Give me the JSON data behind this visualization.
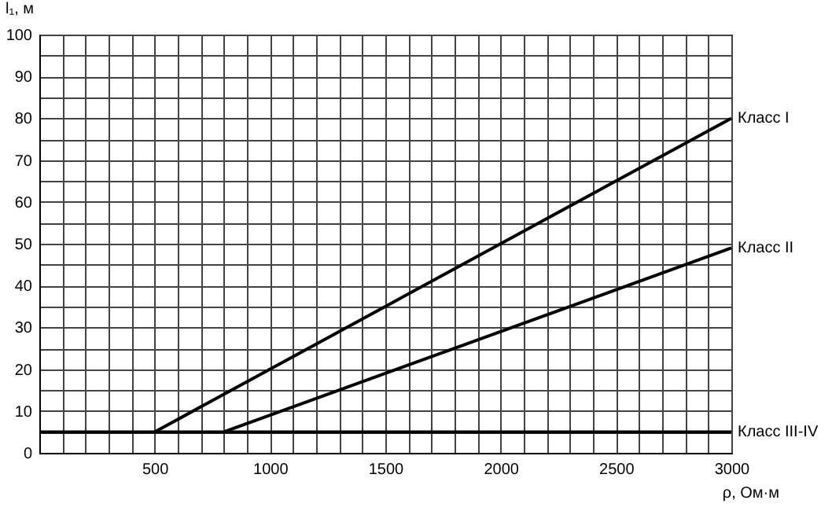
{
  "chart_data": {
    "type": "line",
    "xlabel": "ρ, Ом·м",
    "ylabel": "l₁, м",
    "xlim": [
      0,
      3000
    ],
    "ylim": [
      0,
      100
    ],
    "xticks": [
      {
        "value": 0,
        "label": null
      },
      {
        "value": 100,
        "label": null
      },
      {
        "value": 200,
        "label": null
      },
      {
        "value": 300,
        "label": null
      },
      {
        "value": 400,
        "label": null
      },
      500,
      {
        "value": 600,
        "label": null
      },
      {
        "value": 700,
        "label": null
      },
      {
        "value": 800,
        "label": null
      },
      {
        "value": 900,
        "label": null
      },
      1000,
      {
        "value": 1100,
        "label": null
      },
      {
        "value": 1200,
        "label": null
      },
      {
        "value": 1300,
        "label": null
      },
      {
        "value": 1400,
        "label": null
      },
      1500,
      {
        "value": 1600,
        "label": null
      },
      {
        "value": 1700,
        "label": null
      },
      {
        "value": 1800,
        "label": null
      },
      {
        "value": 1900,
        "label": null
      },
      2000,
      {
        "value": 2100,
        "label": null
      },
      {
        "value": 2200,
        "label": null
      },
      {
        "value": 2300,
        "label": null
      },
      {
        "value": 2400,
        "label": null
      },
      2500,
      {
        "value": 2600,
        "label": null
      },
      {
        "value": 2700,
        "label": null
      },
      {
        "value": 2800,
        "label": null
      },
      {
        "value": 2900,
        "label": null
      },
      3000
    ],
    "yticks": [
      0,
      {
        "value": 5,
        "label": null
      },
      10,
      {
        "value": 15,
        "label": null
      },
      20,
      {
        "value": 25,
        "label": null
      },
      30,
      {
        "value": 35,
        "label": null
      },
      40,
      {
        "value": 45,
        "label": null
      },
      50,
      {
        "value": 55,
        "label": null
      },
      60,
      {
        "value": 65,
        "label": null
      },
      70,
      {
        "value": 75,
        "label": null
      },
      80,
      {
        "value": 85,
        "label": null
      },
      90,
      {
        "value": 95,
        "label": null
      },
      100
    ],
    "grid": true,
    "legend": false,
    "line_style": "solid",
    "marker": "none",
    "series": [
      {
        "name": "Класс I",
        "color": "#000000",
        "x": [
          500,
          3000
        ],
        "values": [
          5,
          80
        ]
      },
      {
        "name": "Класс II",
        "color": "#000000",
        "x": [
          800,
          3000
        ],
        "values": [
          5,
          49
        ]
      },
      {
        "name": "Класс III-IV",
        "color": "#000000",
        "x": [
          0,
          3000
        ],
        "values": [
          5,
          5
        ]
      }
    ]
  }
}
